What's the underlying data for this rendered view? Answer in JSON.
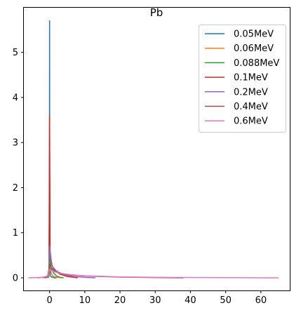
{
  "chart_data": {
    "type": "line",
    "title": "Pb",
    "xlabel": "",
    "ylabel": "",
    "xlim": [
      -7.3,
      68.2
    ],
    "ylim": [
      -0.28,
      5.99
    ],
    "xticks": [
      0,
      10,
      20,
      30,
      40,
      50,
      60
    ],
    "yticks": [
      0,
      1,
      2,
      3,
      4,
      5
    ],
    "grid": false,
    "legend_position": "top-right",
    "series": [
      {
        "name": "0.05MeV",
        "color": "#1f77b4",
        "x": [
          -0.5,
          -0.2,
          -0.05,
          0,
          0.05,
          0.2,
          0.5,
          1.0,
          1.5,
          2.0
        ],
        "y": [
          0,
          0.02,
          0.3,
          5.7,
          0.3,
          0.05,
          0.02,
          0.01,
          0,
          0
        ]
      },
      {
        "name": "0.06MeV",
        "color": "#ff7f0e",
        "x": [
          -0.8,
          -0.3,
          -0.1,
          0,
          0.1,
          0.3,
          0.8,
          1.5,
          2.5,
          3.5
        ],
        "y": [
          0,
          0.02,
          0.2,
          3.4,
          0.5,
          0.15,
          0.05,
          0.02,
          0.01,
          0
        ]
      },
      {
        "name": "0.088MeV",
        "color": "#2ca02c",
        "x": [
          -1.2,
          -0.5,
          -0.15,
          0,
          0.15,
          0.5,
          1.2,
          2.0,
          3.0,
          4.0
        ],
        "y": [
          0,
          0.02,
          0.15,
          2.5,
          0.4,
          0.2,
          0.1,
          0.04,
          0.01,
          0
        ]
      },
      {
        "name": "0.1MeV",
        "color": "#d62728",
        "x": [
          -1.5,
          -0.6,
          -0.15,
          0,
          0.15,
          0.6,
          1.5,
          3.0,
          5.0,
          7.0,
          8.0
        ],
        "y": [
          0,
          0.02,
          0.2,
          3.6,
          0.6,
          0.3,
          0.15,
          0.08,
          0.03,
          0.01,
          0
        ]
      },
      {
        "name": "0.2MeV",
        "color": "#9467bd",
        "x": [
          -2.0,
          -0.8,
          -0.2,
          0,
          0.2,
          0.8,
          2.0,
          4.0,
          7.0,
          10.0,
          13.0
        ],
        "y": [
          0,
          0.02,
          0.1,
          0.7,
          0.5,
          0.25,
          0.15,
          0.07,
          0.03,
          0.01,
          0
        ]
      },
      {
        "name": "0.4MeV",
        "color": "#8c564b",
        "x": [
          -3.5,
          -1.0,
          -0.3,
          0,
          0.3,
          1.0,
          2.0,
          5.0,
          10.0,
          20.0,
          30.0,
          38.0
        ],
        "y": [
          0,
          0.02,
          0.06,
          0.3,
          0.25,
          0.18,
          0.12,
          0.07,
          0.04,
          0.015,
          0.005,
          0
        ]
      },
      {
        "name": "0.6MeV",
        "color": "#e377c2",
        "x": [
          -6.0,
          -2.0,
          -0.5,
          0,
          0.5,
          1.5,
          3.0,
          6.0,
          10.0,
          20.0,
          35.0,
          50.0,
          65.0
        ],
        "y": [
          0,
          0.01,
          0.04,
          0.18,
          0.16,
          0.13,
          0.1,
          0.07,
          0.045,
          0.02,
          0.008,
          0.003,
          0
        ]
      }
    ]
  }
}
